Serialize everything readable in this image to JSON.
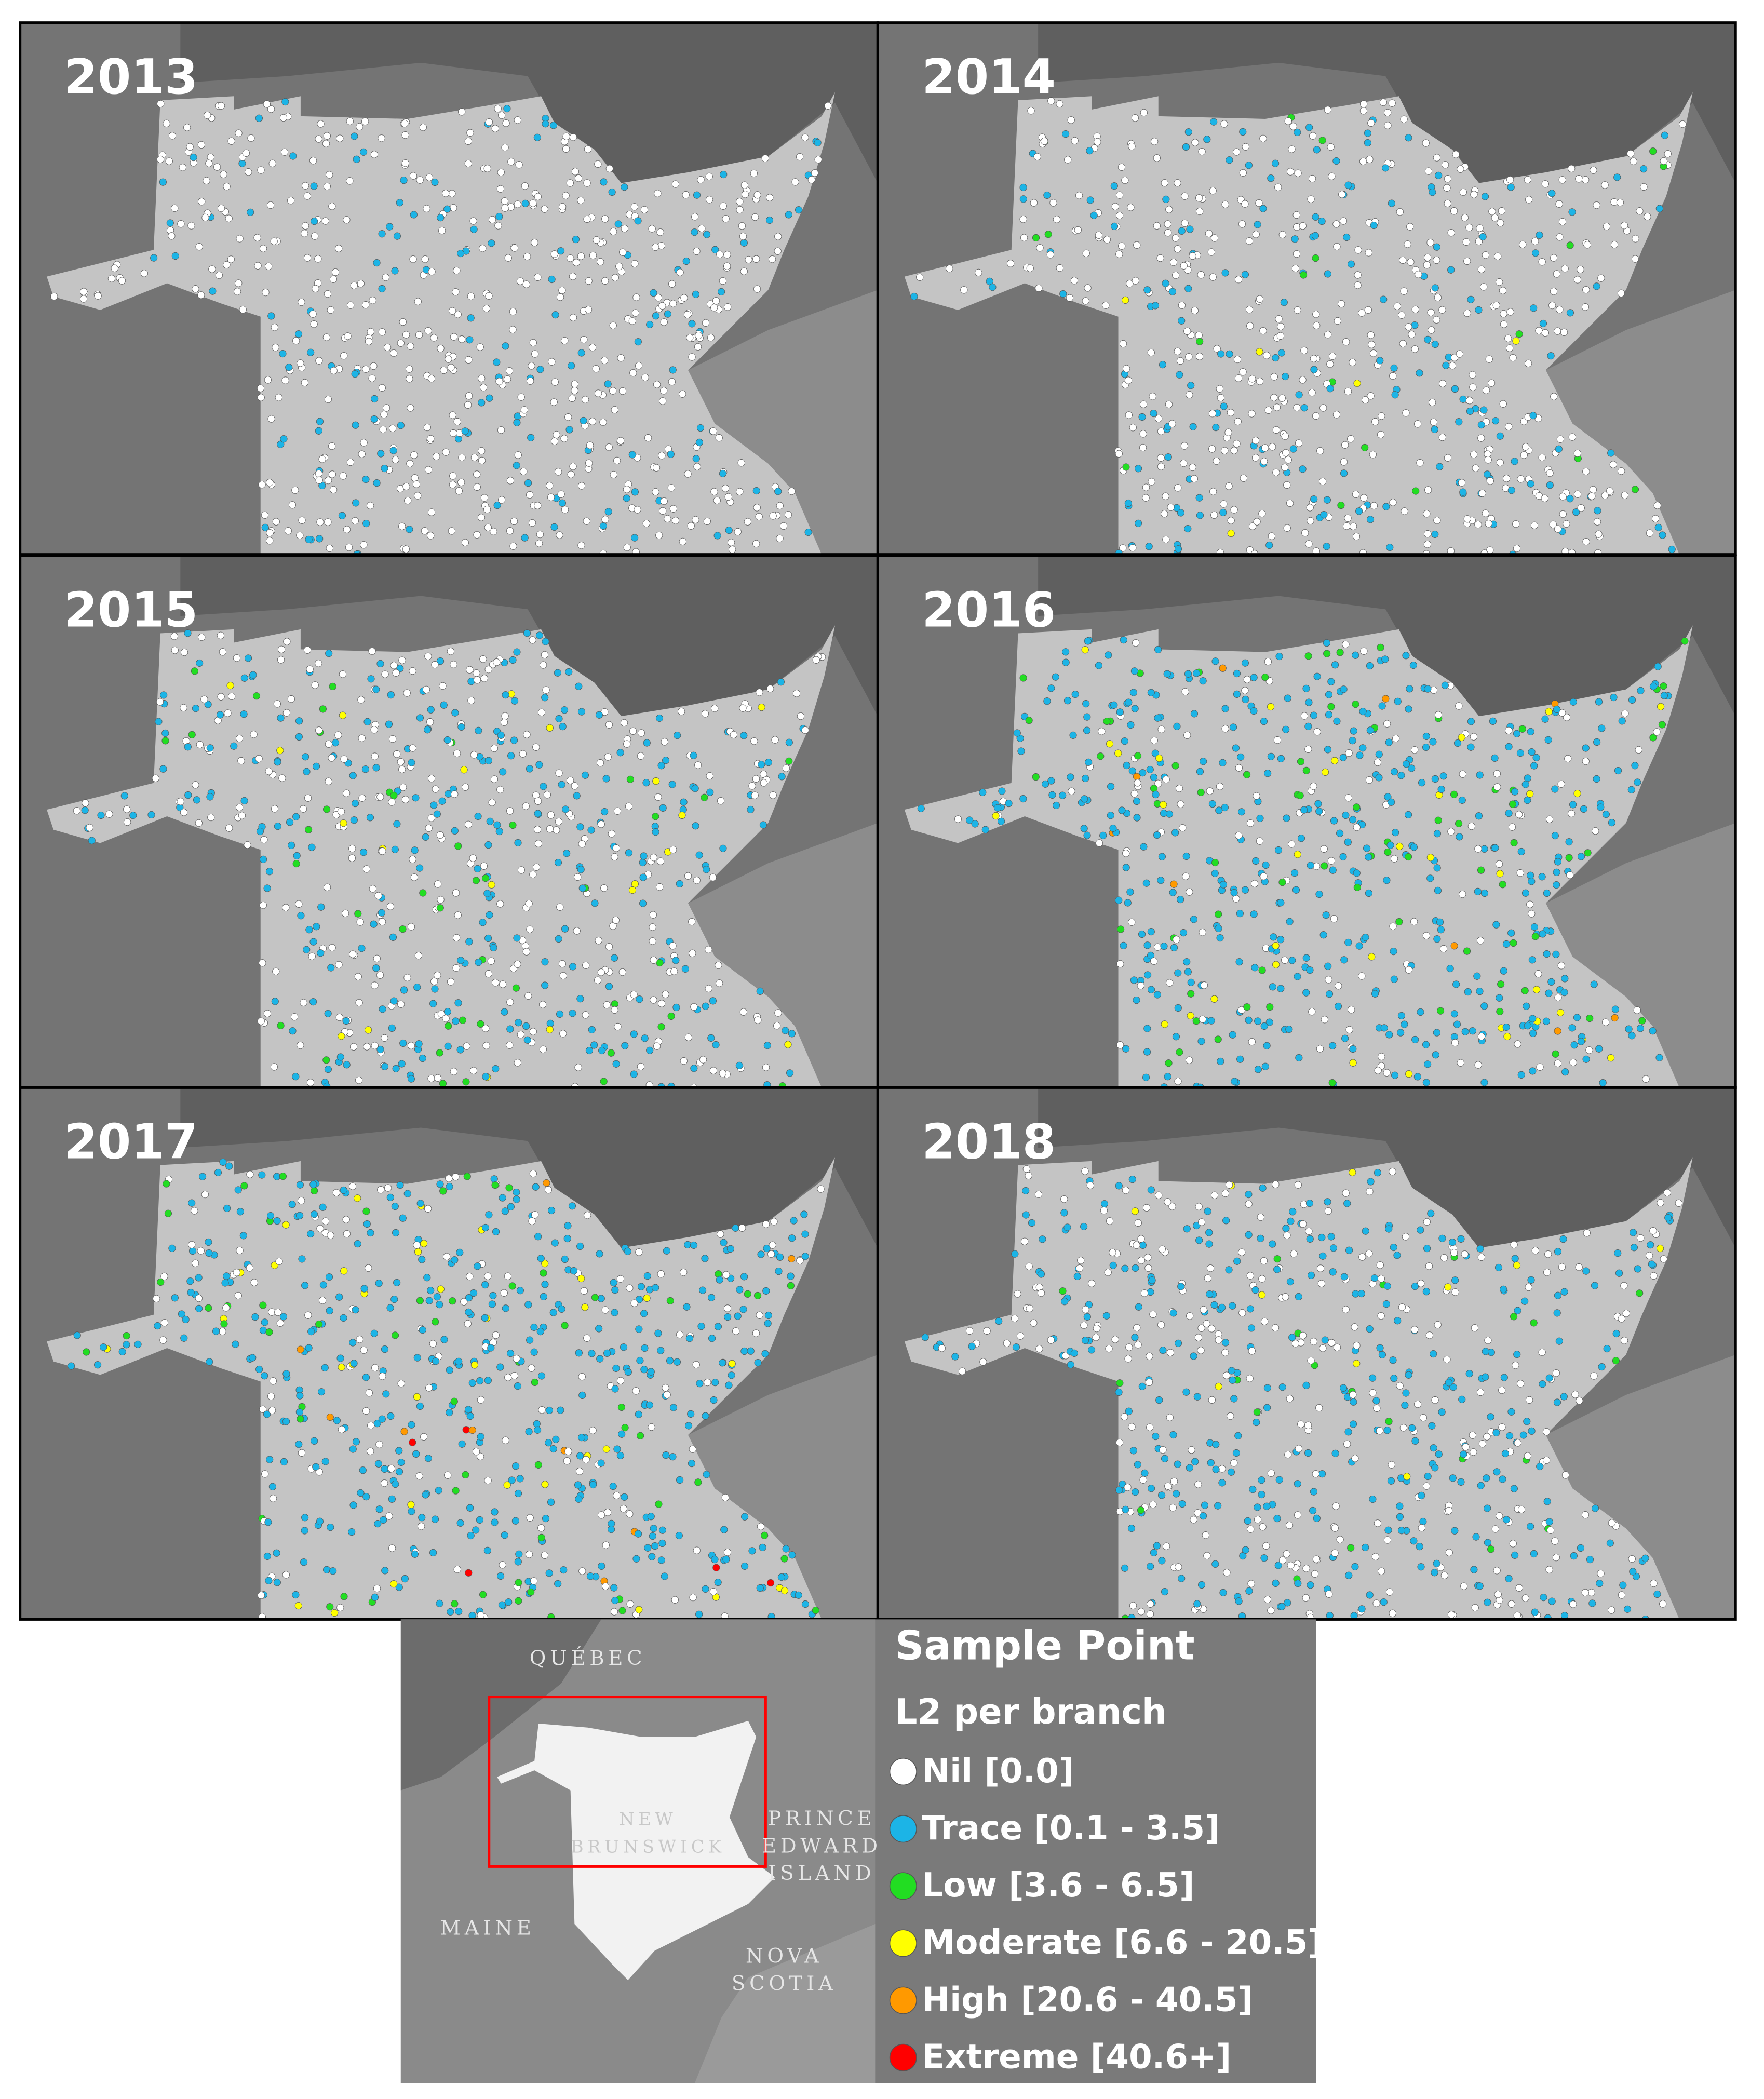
{
  "panels": [
    {
      "year": "2013"
    },
    {
      "year": "2014"
    },
    {
      "year": "2015"
    },
    {
      "year": "2016"
    },
    {
      "year": "2017"
    },
    {
      "year": "2018"
    }
  ],
  "legend": {
    "title": "Sample Point",
    "subtitle": "L2 per branch",
    "items": [
      {
        "label": "Nil [0.0]",
        "color": "#ffffff"
      },
      {
        "label": "Trace [0.1 - 3.5]",
        "color": "#1cb4e6"
      },
      {
        "label": "Low [3.6 - 6.5]",
        "color": "#22dd22"
      },
      {
        "label": "Moderate [6.6 - 20.5]",
        "color": "#ffff00"
      },
      {
        "label": "High [20.6 - 40.5]",
        "color": "#ff9900"
      },
      {
        "label": "Extreme [40.6+]",
        "color": "#ff0000"
      }
    ]
  },
  "inset": {
    "labels": [
      {
        "lines": [
          "QUÉBEC"
        ]
      },
      {
        "lines": [
          "NEW",
          "BRUNSWICK"
        ]
      },
      {
        "lines": [
          "PRINCE",
          "EDWARD",
          "ISLAND"
        ]
      },
      {
        "lines": [
          "MAINE"
        ]
      },
      {
        "lines": [
          "NOVA",
          "SCOTIA"
        ]
      }
    ]
  }
}
